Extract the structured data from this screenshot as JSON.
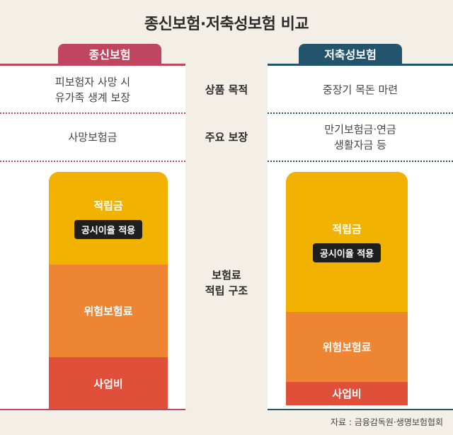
{
  "title": "종신보험·저축성보험 비교",
  "left": {
    "tab": "종신보험",
    "purpose": "피보험자 사망 시\n유가족 생계 보장",
    "coverage": "사망보험금",
    "structure": {
      "savings": "적립금",
      "rate_badge": "공시이율 적용",
      "risk": "위험보험료",
      "expense": "사업비"
    },
    "proportions": {
      "savings": 0.39,
      "risk": 0.39,
      "expense": 0.22
    }
  },
  "right": {
    "tab": "저축성보험",
    "purpose": "중장기 목돈 마련",
    "coverage": "만기보험금·연금\n생활자금 등",
    "structure": {
      "savings": "적립금",
      "rate_badge": "공시이율 적용",
      "risk": "위험보험료",
      "expense": "사업비"
    },
    "proportions": {
      "savings": 0.6,
      "risk": 0.3,
      "expense": 0.1
    }
  },
  "rows": {
    "purpose": "상품 목적",
    "coverage": "주요 보장",
    "structure": "보험료\n적립 구조"
  },
  "source": "자료 : 금융감독원·생명보험협회"
}
